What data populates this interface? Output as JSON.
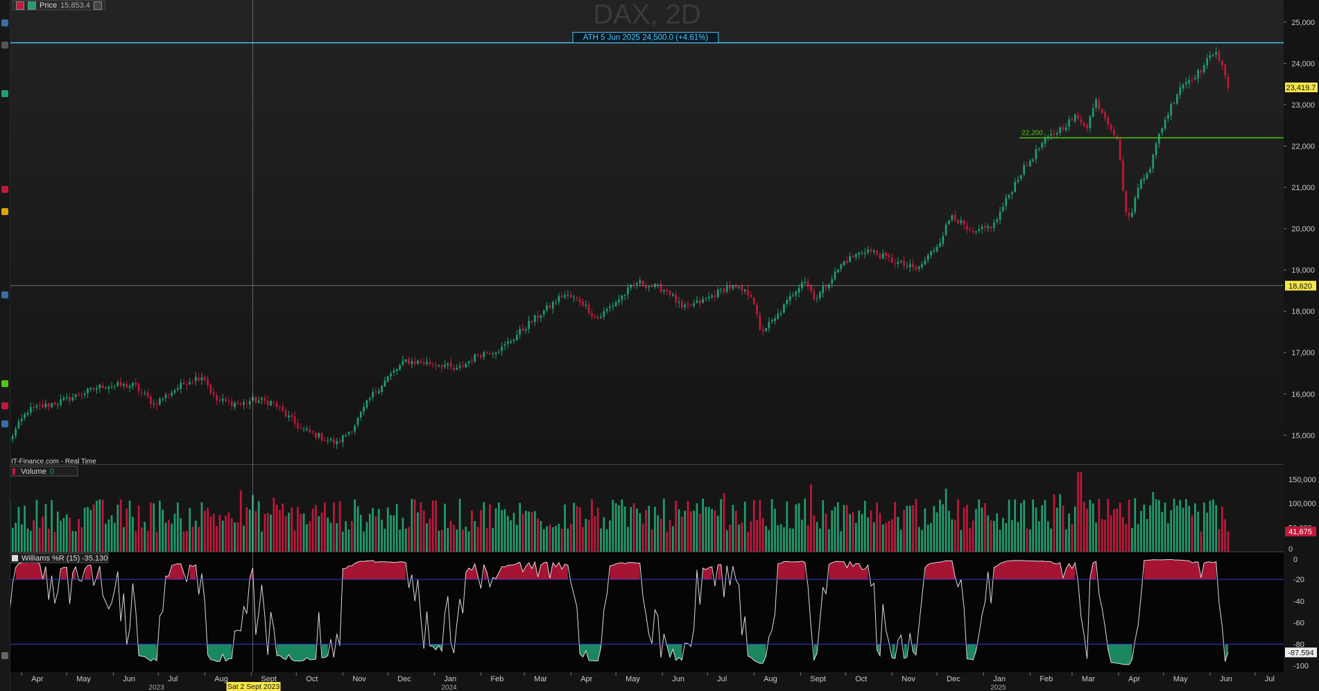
{
  "header": {
    "title": "DAX, 2D",
    "price_label": "Price",
    "price_value": "15,853.4",
    "source": "IT-Finance.com - Real Time"
  },
  "colors": {
    "background": "#151515",
    "up": "#1f9f6e",
    "down": "#c2183b",
    "ath_line": "#4fc3f7",
    "support_line": "#52c41a",
    "crosshair": "#bbbbbb",
    "wr_line": "#dddddd",
    "guide_line": "#3b3bd6"
  },
  "annotations": {
    "ath": "ATH 5 Jun 2025 24,500.0 (+4.61%)",
    "support": "22,200",
    "last_price": "23,419.7",
    "crosshair_price": "18,620",
    "crosshair_date": "Sat 2 Sept 2023",
    "volume_last": "41,675",
    "wr_last": "-87.594"
  },
  "volume_legend": {
    "label": "Volume",
    "value": "0"
  },
  "wr_legend": {
    "label": "Williams %R (15)",
    "value": "-35.130"
  },
  "x_axis": {
    "months": [
      "Apr",
      "May",
      "Jun",
      "Jul",
      "Aug",
      "Sept",
      "Oct",
      "Nov",
      "Dec",
      "Jan",
      "Feb",
      "Mar",
      "Apr",
      "May",
      "Jun",
      "Jul",
      "Aug",
      "Sept",
      "Oct",
      "Nov",
      "Dec",
      "Jan",
      "Feb",
      "Mar",
      "Apr",
      "May",
      "Jun",
      "Jul"
    ],
    "years": [
      "2023",
      "2024",
      "2025"
    ]
  },
  "chart_data": [
    {
      "type": "candlestick",
      "title": "DAX, 2D",
      "y_ticks": [
        "15,000",
        "16,000",
        "17,000",
        "18,000",
        "19,000",
        "20,000",
        "21,000",
        "22,000",
        "23,000",
        "24,000",
        "25,000"
      ],
      "ylim": [
        14300,
        25300
      ],
      "x_range": [
        "2023-03-24",
        "2025-07-20"
      ],
      "anchors": [
        [
          "2023-03-24",
          14900
        ],
        [
          "2023-04-05",
          15600
        ],
        [
          "2023-04-30",
          15850
        ],
        [
          "2023-05-25",
          16200
        ],
        [
          "2023-06-15",
          16200
        ],
        [
          "2023-06-28",
          15750
        ],
        [
          "2023-07-20",
          16300
        ],
        [
          "2023-07-31",
          16450
        ],
        [
          "2023-08-08",
          15850
        ],
        [
          "2023-08-25",
          15750
        ],
        [
          "2023-09-02",
          15850
        ],
        [
          "2023-09-15",
          15800
        ],
        [
          "2023-10-04",
          15150
        ],
        [
          "2023-10-28",
          14800
        ],
        [
          "2023-11-08",
          15200
        ],
        [
          "2023-11-20",
          15950
        ],
        [
          "2023-12-01",
          16400
        ],
        [
          "2023-12-13",
          16800
        ],
        [
          "2024-01-08",
          16700
        ],
        [
          "2024-01-15",
          16550
        ],
        [
          "2024-01-30",
          16950
        ],
        [
          "2024-02-15",
          17100
        ],
        [
          "2024-03-04",
          17700
        ],
        [
          "2024-03-27",
          18400
        ],
        [
          "2024-04-08",
          18250
        ],
        [
          "2024-04-18",
          17800
        ],
        [
          "2024-05-15",
          18700
        ],
        [
          "2024-06-05",
          18500
        ],
        [
          "2024-06-14",
          18050
        ],
        [
          "2024-06-28",
          18250
        ],
        [
          "2024-07-15",
          18600
        ],
        [
          "2024-07-31",
          18400
        ],
        [
          "2024-08-05",
          17500
        ],
        [
          "2024-08-15",
          17800
        ],
        [
          "2024-09-03",
          18800
        ],
        [
          "2024-09-11",
          18300
        ],
        [
          "2024-09-30",
          19200
        ],
        [
          "2024-10-15",
          19500
        ],
        [
          "2024-11-06",
          19150
        ],
        [
          "2024-11-18",
          19000
        ],
        [
          "2024-12-02",
          19650
        ],
        [
          "2024-12-11",
          20350
        ],
        [
          "2024-12-24",
          19850
        ],
        [
          "2025-01-08",
          20100
        ],
        [
          "2025-01-24",
          21250
        ],
        [
          "2025-02-10",
          22100
        ],
        [
          "2025-03-03",
          22700
        ],
        [
          "2025-03-11",
          22500
        ],
        [
          "2025-03-17",
          23100
        ],
        [
          "2025-03-31",
          22200
        ],
        [
          "2025-04-04",
          21000
        ],
        [
          "2025-04-07",
          20100
        ],
        [
          "2025-04-16",
          21200
        ],
        [
          "2025-04-22",
          21500
        ],
        [
          "2025-04-29",
          22400
        ],
        [
          "2025-05-12",
          23450
        ],
        [
          "2025-05-25",
          23800
        ],
        [
          "2025-06-05",
          24350
        ],
        [
          "2025-06-13",
          23419.7
        ]
      ],
      "ath_date": "2025-06-05",
      "ath_price": 24500,
      "support_price": 22200,
      "support_start": "2025-01-25",
      "crosshair_date": "2023-09-02",
      "crosshair_price": 18620,
      "last_price": 23419.7
    },
    {
      "type": "bar",
      "title": "Volume",
      "y_ticks": [
        "0",
        "50,000",
        "100,000",
        "150,000"
      ],
      "ylim": [
        0,
        180000
      ],
      "typical_range": [
        40000,
        110000
      ],
      "peak_date": "2025-03-06",
      "peak_value": 165000,
      "last_value": 41675
    },
    {
      "type": "line",
      "title": "Williams %R (15)",
      "y_ticks": [
        "0",
        "-20",
        "-40",
        "-60",
        "-80",
        "-100"
      ],
      "ylim": [
        -100,
        0
      ],
      "overbought": -20,
      "oversold": -80,
      "last_value": -87.594,
      "current_value": -35.13
    }
  ]
}
